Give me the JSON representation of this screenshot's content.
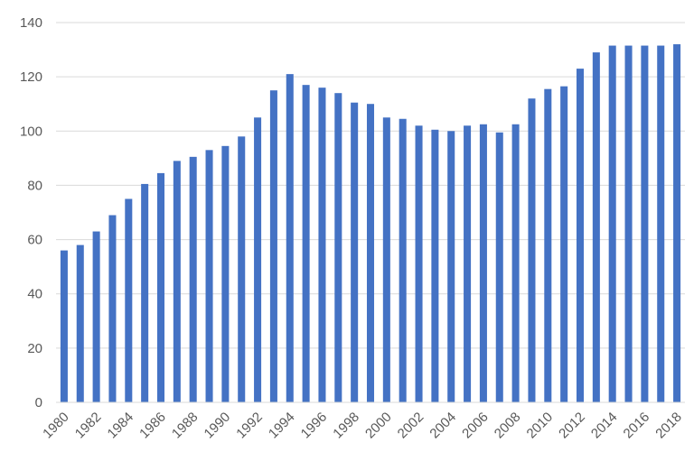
{
  "chart_data": {
    "type": "bar",
    "title": "",
    "xlabel": "",
    "ylabel": "",
    "ylim": [
      0,
      140
    ],
    "yticks": [
      0,
      20,
      40,
      60,
      80,
      100,
      120,
      140
    ],
    "grid": true,
    "legend": "none",
    "bar_color": "#4472c4",
    "categories": [
      "1980",
      "1981",
      "1982",
      "1983",
      "1984",
      "1985",
      "1986",
      "1987",
      "1988",
      "1989",
      "1990",
      "1991",
      "1992",
      "1993",
      "1994",
      "1995",
      "1996",
      "1997",
      "1998",
      "1999",
      "2000",
      "2001",
      "2002",
      "2003",
      "2004",
      "2005",
      "2006",
      "2007",
      "2008",
      "2009",
      "2010",
      "2011",
      "2012",
      "2013",
      "2014",
      "2015",
      "2016",
      "2017",
      "2018"
    ],
    "x_tick_labels": [
      "1980",
      "1982",
      "1984",
      "1986",
      "1988",
      "1990",
      "1992",
      "1994",
      "1996",
      "1998",
      "2000",
      "2002",
      "2004",
      "2006",
      "2008",
      "2010",
      "2012",
      "2014",
      "2016",
      "2018"
    ],
    "values": [
      56,
      58,
      63,
      69,
      75,
      80.5,
      84.5,
      89,
      90.5,
      93,
      94.5,
      98,
      105,
      115,
      121,
      117,
      116,
      114,
      110.5,
      110,
      105,
      104.5,
      102,
      100.5,
      100,
      102,
      102.5,
      99.5,
      102.5,
      112,
      115.5,
      116.5,
      123,
      129,
      131.5,
      131.5,
      131.5,
      131.5,
      132
    ]
  }
}
